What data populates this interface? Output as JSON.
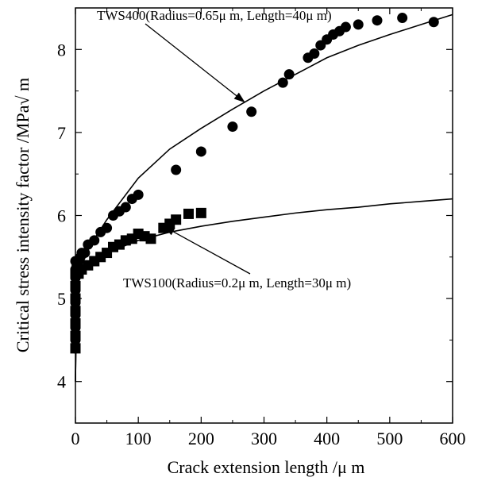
{
  "chart_data": {
    "type": "scatter",
    "xlabel": "Crack extension length /μ m",
    "ylabel": "Critical stress intensity factor /MPa√ m",
    "xlim": [
      0,
      600
    ],
    "ylim": [
      3.5,
      8.5
    ],
    "x_ticks": [
      0,
      100,
      200,
      300,
      400,
      500,
      600
    ],
    "y_ticks": [
      4,
      5,
      6,
      7,
      8
    ],
    "grid": false,
    "legend": "none",
    "annotations": [
      {
        "text": "TWS400(Radius=0.65μ  m, Length=40μ  m)",
        "points_to": "TWS400 model curve"
      },
      {
        "text": "TWS100(Radius=0.2μ  m, Length=30μ  m)",
        "points_to": "TWS100 model curve"
      }
    ],
    "series": [
      {
        "kind": "scatter",
        "marker": "circle",
        "color": "#000000",
        "x": [
          0,
          0,
          0,
          0,
          0,
          0,
          0,
          0,
          0,
          2,
          3,
          5,
          5,
          8,
          10,
          15,
          20,
          30,
          40,
          50,
          60,
          70,
          80,
          90,
          100,
          160,
          200,
          250,
          280,
          330,
          340,
          370,
          380,
          390,
          400,
          410,
          420,
          430,
          450,
          480,
          520,
          570
        ],
        "y": [
          4.4,
          4.5,
          4.65,
          4.8,
          4.95,
          5.1,
          5.25,
          5.35,
          5.45,
          5.4,
          5.35,
          5.45,
          5.3,
          5.5,
          5.55,
          5.55,
          5.65,
          5.7,
          5.8,
          5.85,
          6.0,
          6.05,
          6.1,
          6.2,
          6.25,
          6.55,
          6.77,
          7.07,
          7.25,
          7.6,
          7.7,
          7.9,
          7.95,
          8.05,
          8.12,
          8.18,
          8.22,
          8.27,
          8.3,
          8.35,
          8.38,
          8.33
        ]
      },
      {
        "kind": "scatter",
        "marker": "square",
        "color": "#000000",
        "x": [
          0,
          0,
          0,
          0,
          0,
          0,
          0,
          5,
          10,
          20,
          30,
          40,
          50,
          60,
          70,
          80,
          90,
          100,
          110,
          120,
          140,
          150,
          160,
          180,
          200
        ],
        "y": [
          4.4,
          4.55,
          4.7,
          4.85,
          5.0,
          5.15,
          5.3,
          5.3,
          5.35,
          5.4,
          5.45,
          5.5,
          5.55,
          5.62,
          5.65,
          5.7,
          5.72,
          5.78,
          5.75,
          5.72,
          5.85,
          5.9,
          5.95,
          6.02,
          6.03
        ]
      },
      {
        "kind": "line",
        "color": "#000000",
        "x": [
          0,
          2,
          5,
          10,
          20,
          50,
          100,
          150,
          200,
          250,
          300,
          350,
          400,
          450,
          500,
          550,
          600
        ],
        "y": [
          4.0,
          5.1,
          5.32,
          5.45,
          5.6,
          5.95,
          6.45,
          6.8,
          7.05,
          7.28,
          7.5,
          7.7,
          7.9,
          8.05,
          8.18,
          8.3,
          8.42
        ]
      },
      {
        "kind": "line",
        "color": "#000000",
        "x": [
          0,
          2,
          5,
          10,
          20,
          50,
          100,
          150,
          200,
          250,
          300,
          350,
          400,
          450,
          500,
          550,
          600
        ],
        "y": [
          4.0,
          5.05,
          5.2,
          5.3,
          5.4,
          5.55,
          5.7,
          5.8,
          5.87,
          5.93,
          5.98,
          6.03,
          6.07,
          6.1,
          6.14,
          6.17,
          6.2
        ]
      }
    ]
  }
}
